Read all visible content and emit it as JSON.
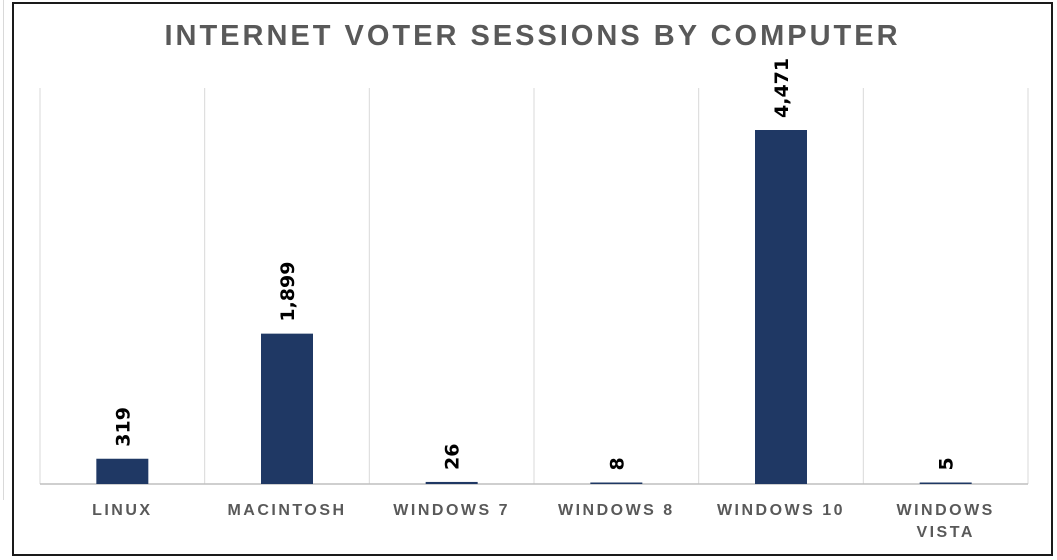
{
  "chart_data": {
    "type": "bar",
    "title": "INTERNET VOTER SESSIONS BY COMPUTER",
    "categories": [
      [
        "LINUX"
      ],
      [
        "MACINTOSH"
      ],
      [
        "WINDOWS 7"
      ],
      [
        "WINDOWS 8"
      ],
      [
        "WINDOWS 10"
      ],
      [
        "WINDOWS",
        "VISTA"
      ]
    ],
    "values": [
      319,
      1899,
      26,
      8,
      4471,
      5
    ],
    "value_labels": [
      "319",
      "1,899",
      "26",
      "8",
      "4,471",
      "5"
    ],
    "xlabel": "",
    "ylabel": "",
    "ylim": [
      0,
      4471
    ],
    "grid": "vertical separators",
    "legend": "none",
    "bar_color": "#1f3864"
  }
}
